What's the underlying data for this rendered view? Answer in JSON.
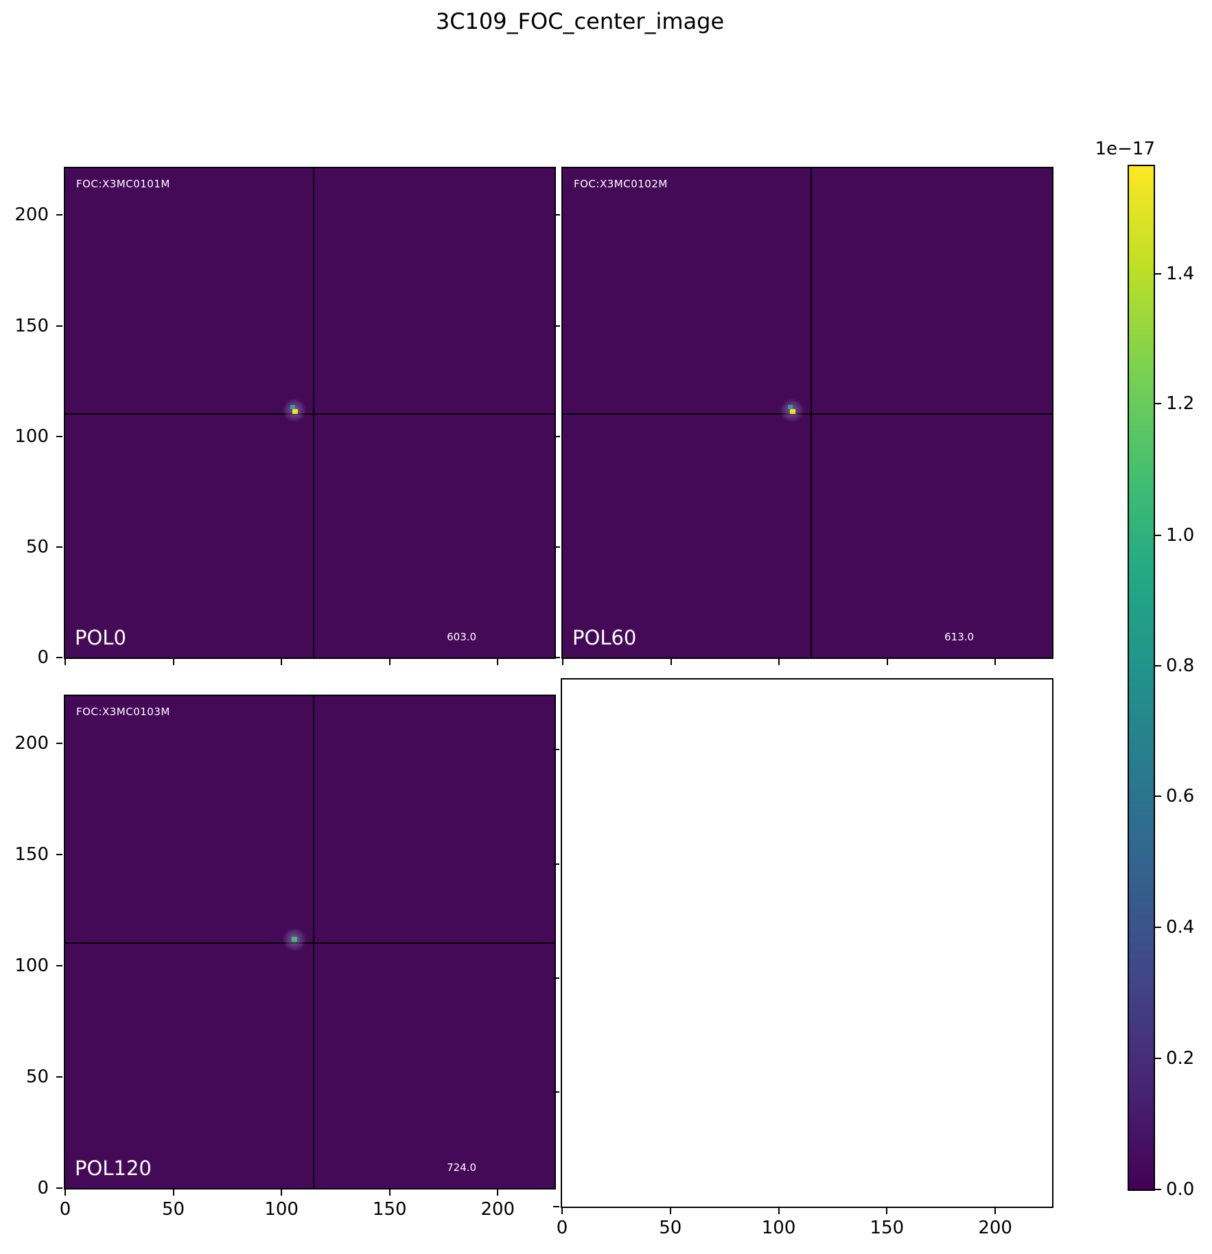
{
  "title": "3C109_FOC_center_image",
  "panels": [
    {
      "header": "FOC:X3MC0101M",
      "pol": "POL0",
      "value": "603.0"
    },
    {
      "header": "FOC:X3MC0102M",
      "pol": "POL60",
      "value": "613.0"
    },
    {
      "header": "FOC:X3MC0103M",
      "pol": "POL120",
      "value": "724.0"
    },
    {
      "header": "",
      "pol": "",
      "value": ""
    }
  ],
  "axes": {
    "x_tick_labels": [
      "0",
      "50",
      "100",
      "150",
      "200"
    ],
    "y_tick_labels": [
      "0",
      "50",
      "100",
      "150",
      "200"
    ]
  },
  "colorbar": {
    "offset_label": "1e−17",
    "tick_labels": [
      "1.4",
      "1.2",
      "1.0",
      "0.8",
      "0.6",
      "0.4",
      "0.2",
      "0.0"
    ],
    "colormap": "viridis"
  },
  "chart_data": {
    "type": "heatmap",
    "title": "3C109_FOC_center_image",
    "colormap": "viridis",
    "value_scale": "1e-17",
    "value_range": [
      0.0,
      1.57e-17
    ],
    "colorbar_ticks": [
      0.0,
      0.2,
      0.4,
      0.6,
      0.8,
      1.0,
      1.2,
      1.4
    ],
    "x_ticks": [
      0,
      50,
      100,
      150,
      200
    ],
    "y_ticks": [
      0,
      50,
      100,
      150,
      200
    ],
    "x_range": [
      0,
      230
    ],
    "y_range": [
      0,
      230
    ],
    "panels": [
      {
        "position": "top-left",
        "pol_filter": "POL0",
        "dataset": "FOC:X3MC0101M",
        "annotation_value": 603.0,
        "crosshair": {
          "x": 115,
          "y": 111
        },
        "source_peak": {
          "x": 106,
          "y": 111,
          "peak_color": "yellow"
        }
      },
      {
        "position": "top-right",
        "pol_filter": "POL60",
        "dataset": "FOC:X3MC0102M",
        "annotation_value": 613.0,
        "crosshair": {
          "x": 115,
          "y": 111
        },
        "source_peak": {
          "x": 106,
          "y": 111,
          "peak_color": "yellow"
        }
      },
      {
        "position": "bottom-left",
        "pol_filter": "POL120",
        "dataset": "FOC:X3MC0103M",
        "annotation_value": 724.0,
        "crosshair": {
          "x": 115,
          "y": 111
        },
        "source_peak": {
          "x": 106,
          "y": 111,
          "peak_color": "green"
        }
      },
      {
        "position": "bottom-right",
        "empty": true
      }
    ]
  }
}
